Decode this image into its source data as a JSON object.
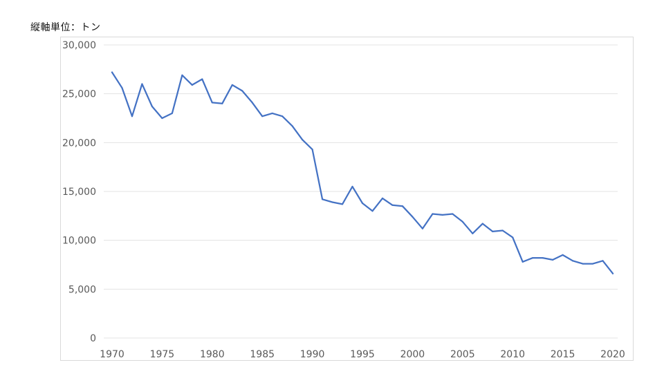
{
  "chart_data": {
    "type": "line",
    "title": "",
    "unit_label": "縦軸単位：トン",
    "xlabel": "",
    "ylabel": "",
    "xlim": [
      1970,
      2020
    ],
    "ylim": [
      0,
      30000
    ],
    "x_ticks": [
      1970,
      1975,
      1980,
      1985,
      1990,
      1995,
      2000,
      2005,
      2010,
      2015,
      2020
    ],
    "y_ticks": [
      0,
      5000,
      10000,
      15000,
      20000,
      25000,
      30000
    ],
    "y_tick_labels": [
      "0",
      "5,000",
      "10,000",
      "15,000",
      "20,000",
      "25,000",
      "30,000"
    ],
    "grid": "horizontal",
    "legend": "none",
    "series": [
      {
        "color": "#4472c4",
        "x": [
          1970,
          1971,
          1972,
          1973,
          1974,
          1975,
          1976,
          1977,
          1978,
          1979,
          1980,
          1981,
          1982,
          1983,
          1984,
          1985,
          1986,
          1987,
          1988,
          1989,
          1990,
          1991,
          1992,
          1993,
          1994,
          1995,
          1996,
          1997,
          1998,
          1999,
          2000,
          2001,
          2002,
          2003,
          2004,
          2005,
          2006,
          2007,
          2008,
          2009,
          2010,
          2011,
          2012,
          2013,
          2014,
          2015,
          2016,
          2017,
          2018,
          2019,
          2020
        ],
        "values": [
          27200,
          25600,
          22700,
          26000,
          23700,
          22500,
          23000,
          26900,
          25900,
          26500,
          24100,
          24000,
          25900,
          25300,
          24100,
          22700,
          23000,
          22700,
          21700,
          20300,
          19300,
          14200,
          13900,
          13700,
          15500,
          13800,
          13000,
          14300,
          13600,
          13500,
          12400,
          11200,
          12700,
          12600,
          12700,
          11900,
          10700,
          11700,
          10900,
          11000,
          10300,
          7800,
          8200,
          8200,
          8000,
          8500,
          7900,
          7600,
          7600,
          7900,
          6600
        ]
      }
    ]
  }
}
